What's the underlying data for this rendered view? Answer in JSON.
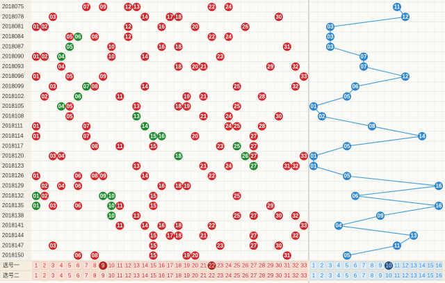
{
  "rows": [
    {
      "period": "2018075",
      "red": [
        "07",
        "09",
        "12",
        "13",
        "22",
        "24"
      ],
      "green": [],
      "blue": "11"
    },
    {
      "period": "2018078",
      "red": [
        "03",
        "14",
        "17",
        "18",
        "30"
      ],
      "green": [],
      "blue": "12"
    },
    {
      "period": "2018081",
      "red": [
        "01",
        "02",
        "12",
        "16",
        "20",
        "26"
      ],
      "green": [],
      "blue": "03"
    },
    {
      "period": "2018084",
      "red": [
        "05",
        "08",
        "12",
        "22",
        "24"
      ],
      "green": [
        "06"
      ],
      "blue": "03"
    },
    {
      "period": "2018087",
      "red": [
        "10",
        "16",
        "18",
        "31"
      ],
      "green": [
        "05"
      ],
      "blue": "03"
    },
    {
      "period": "2018090",
      "red": [
        "01",
        "02",
        "10",
        "14",
        "23"
      ],
      "green": [
        "04"
      ],
      "blue": "07"
    },
    {
      "period": "2018093",
      "red": [
        "04",
        "18",
        "20",
        "21",
        "29",
        "32"
      ],
      "green": [],
      "blue": "07"
    },
    {
      "period": "2018096",
      "red": [
        "01",
        "05",
        "09",
        "33"
      ],
      "green": [],
      "blue": "12"
    },
    {
      "period": "2018099",
      "red": [
        "03",
        "08",
        "14",
        "25",
        "32"
      ],
      "green": [
        "07"
      ],
      "blue": "06"
    },
    {
      "period": "2018102",
      "red": [
        "02",
        "11",
        "19",
        "21",
        "28"
      ],
      "green": [
        "06"
      ],
      "blue": "05"
    },
    {
      "period": "2018105",
      "red": [
        "05",
        "13",
        "18",
        "19",
        "25"
      ],
      "green": [
        "04"
      ],
      "blue": "01"
    },
    {
      "period": "2018108",
      "red": [
        "05",
        "21",
        "24",
        "30"
      ],
      "green": [
        "13"
      ],
      "blue": "02"
    },
    {
      "period": "2018111",
      "red": [
        "01",
        "07",
        "24",
        "25",
        "28"
      ],
      "green": [
        "14"
      ],
      "blue": "08"
    },
    {
      "period": "2018114",
      "red": [
        "01",
        "07",
        "20",
        "27"
      ],
      "green": [
        "15",
        "16"
      ],
      "blue": "14"
    },
    {
      "period": "2018117",
      "red": [
        "08",
        "11",
        "15",
        "23",
        "27"
      ],
      "green": [
        "25"
      ],
      "blue": "05"
    },
    {
      "period": "2018120",
      "red": [
        "03",
        "04",
        "27",
        "33"
      ],
      "green": [
        "18",
        "26"
      ],
      "blue": "01"
    },
    {
      "period": "2018123",
      "red": [
        "13",
        "21",
        "24",
        "31",
        "32"
      ],
      "green": [
        "27"
      ],
      "blue": "01"
    },
    {
      "period": "2018126",
      "red": [
        "01",
        "06",
        "08",
        "09",
        "14",
        "22"
      ],
      "green": [],
      "blue": "05"
    },
    {
      "period": "2018129",
      "red": [
        "02",
        "04",
        "06",
        "16",
        "18",
        "19"
      ],
      "green": [],
      "blue": "16"
    },
    {
      "period": "2018132",
      "red": [
        "02",
        "15",
        "25"
      ],
      "green": [
        "01",
        "09",
        "10"
      ],
      "blue": "06"
    },
    {
      "period": "2018135",
      "red": [
        "03",
        "06",
        "11",
        "15",
        "29"
      ],
      "green": [
        "01",
        "10"
      ],
      "blue": "16"
    },
    {
      "period": "2018138",
      "red": [
        "13",
        "25",
        "27",
        "30",
        "32"
      ],
      "green": [
        "10"
      ],
      "blue": "09"
    },
    {
      "period": "2018141",
      "red": [
        "11",
        "14",
        "16",
        "18",
        "22",
        "33"
      ],
      "green": [],
      "blue": "04"
    },
    {
      "period": "2018144",
      "red": [
        "15",
        "17",
        "18",
        "21",
        "27",
        "32"
      ],
      "green": [],
      "blue": "13"
    },
    {
      "period": "2018147",
      "red": [
        "03",
        "15",
        "23",
        "27",
        "30"
      ],
      "green": [],
      "blue": "11"
    },
    {
      "period": "2018150",
      "red": [
        "06",
        "08",
        "15",
        "19",
        "20",
        "31"
      ],
      "green": [],
      "blue": "05"
    }
  ],
  "selectors": [
    {
      "label": "选号一",
      "red": [
        1,
        2,
        3,
        4,
        5,
        6,
        7,
        8,
        9,
        10,
        11,
        12,
        13,
        14,
        15,
        16,
        17,
        18,
        19,
        20,
        21,
        22,
        23,
        24,
        25,
        26,
        27,
        28,
        29,
        30,
        31,
        32,
        33
      ],
      "blue": [
        1,
        2,
        3,
        4,
        5,
        6,
        7,
        8,
        9,
        10,
        11,
        12,
        13,
        14,
        15,
        16
      ],
      "picked_red": [
        9,
        22
      ],
      "picked_blue": [
        10
      ]
    },
    {
      "label": "选号二",
      "red": [
        1,
        2,
        3,
        4,
        5,
        6,
        7,
        8,
        9,
        10,
        11,
        12,
        13,
        14,
        15,
        16,
        17,
        18,
        19,
        20,
        21,
        22,
        23,
        24,
        25,
        26,
        27,
        28,
        29,
        30,
        31,
        32,
        33
      ],
      "blue": [
        1,
        2,
        3,
        4,
        5,
        6,
        7,
        8,
        9,
        10,
        11,
        12,
        13,
        14,
        15,
        16
      ],
      "picked_red": [],
      "picked_blue": []
    }
  ],
  "colors": {
    "red": "#d2262b",
    "green": "#1e8a2e",
    "blue": "#2f86d0",
    "line": "#4aa3df"
  }
}
